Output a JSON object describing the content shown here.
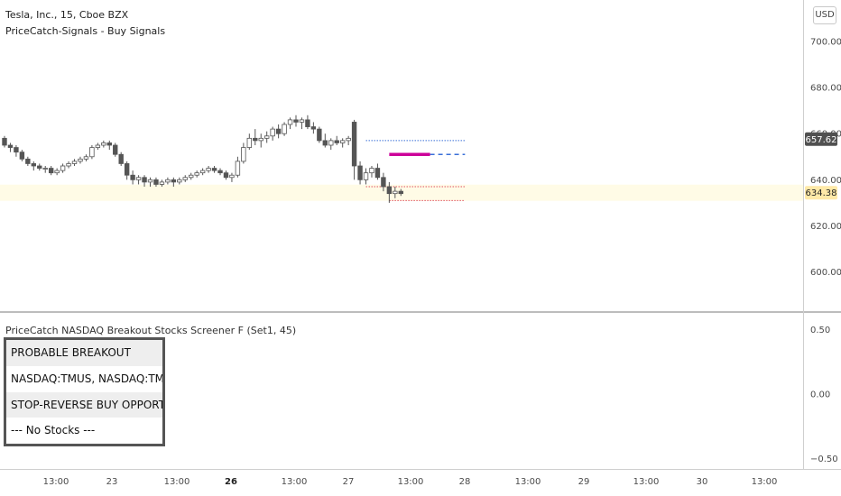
{
  "header": {
    "symbol_title": "Tesla, Inc., 15, Cboe BZX",
    "indicator_title": "PriceCatch-Signals - Buy Signals",
    "currency": "USD"
  },
  "pane2": {
    "title": "PriceCatch NASDAQ Breakout Stocks Screener F (Set1, 45)",
    "y_ticks": [
      "0.50",
      "0.00",
      "−0.50"
    ]
  },
  "screener": {
    "rows": [
      {
        "text": "PROBABLE BREAKOUT",
        "header": true
      },
      {
        "text": "NASDAQ:TMUS, NASDAQ:TMUS,",
        "header": false
      },
      {
        "text": "STOP-REVERSE BUY OPPORTUNITY",
        "header": true
      },
      {
        "text": "--- No Stocks ---",
        "header": false
      }
    ]
  },
  "colors": {
    "up_body": "#ffffff",
    "down_body": "#555555",
    "wick": "#555555",
    "last_price_bg": "#ffe9a8",
    "prev_price_bg": "#505050",
    "signal_magenta": "#cc0099",
    "level_blue": "#3a6fd8",
    "level_red": "#e05060"
  },
  "chart_data": [
    {
      "type": "candlestick",
      "title": "Tesla, Inc., 15, Cboe BZX",
      "subtitle": "PriceCatch-Signals - Buy Signals",
      "x_ticks": [
        "13:00",
        "23",
        "13:00",
        "26",
        "13:00",
        "27",
        "13:00",
        "28",
        "13:00",
        "29",
        "13:00",
        "30",
        "13:00"
      ],
      "y_ticks": [
        700,
        680,
        660,
        640,
        620,
        600
      ],
      "ylim": [
        583,
        718
      ],
      "price_labels": {
        "last": 634.38,
        "previous_close": 657.62
      },
      "candles": [
        [
          658,
          659,
          654,
          655
        ],
        [
          655,
          656,
          652,
          654
        ],
        [
          654,
          655,
          650,
          652
        ],
        [
          652,
          653,
          648,
          649
        ],
        [
          649,
          650,
          646,
          647
        ],
        [
          647,
          648,
          644,
          646
        ],
        [
          646,
          647,
          644,
          645
        ],
        [
          645,
          646,
          643,
          645
        ],
        [
          645,
          646,
          642,
          643
        ],
        [
          643,
          645,
          642,
          644
        ],
        [
          644,
          647,
          643,
          646
        ],
        [
          646,
          648,
          645,
          647
        ],
        [
          647,
          649,
          646,
          648
        ],
        [
          648,
          650,
          647,
          649
        ],
        [
          649,
          651,
          648,
          650
        ],
        [
          650,
          655,
          649,
          654
        ],
        [
          654,
          656,
          653,
          655
        ],
        [
          655,
          657,
          654,
          656
        ],
        [
          656,
          657,
          653,
          655
        ],
        [
          655,
          656,
          650,
          651
        ],
        [
          651,
          652,
          646,
          647
        ],
        [
          647,
          648,
          640,
          642
        ],
        [
          642,
          644,
          638,
          640
        ],
        [
          640,
          642,
          638,
          641
        ],
        [
          641,
          642,
          637,
          639
        ],
        [
          639,
          641,
          637,
          640
        ],
        [
          640,
          641,
          637,
          638
        ],
        [
          638,
          640,
          637,
          639
        ],
        [
          639,
          641,
          638,
          640
        ],
        [
          640,
          641,
          637,
          639
        ],
        [
          639,
          641,
          638,
          640
        ],
        [
          640,
          642,
          639,
          641
        ],
        [
          641,
          643,
          640,
          642
        ],
        [
          642,
          644,
          641,
          643
        ],
        [
          643,
          645,
          642,
          644
        ],
        [
          644,
          646,
          643,
          645
        ],
        [
          645,
          646,
          643,
          644
        ],
        [
          644,
          645,
          642,
          643
        ],
        [
          643,
          644,
          640,
          641
        ],
        [
          641,
          643,
          639,
          642
        ],
        [
          642,
          650,
          641,
          648
        ],
        [
          648,
          656,
          647,
          654
        ],
        [
          654,
          660,
          653,
          658
        ],
        [
          658,
          662,
          655,
          657
        ],
        [
          657,
          660,
          654,
          658
        ],
        [
          658,
          661,
          656,
          659
        ],
        [
          659,
          663,
          657,
          662
        ],
        [
          662,
          664,
          658,
          660
        ],
        [
          660,
          665,
          659,
          664
        ],
        [
          664,
          667,
          662,
          666
        ],
        [
          666,
          668,
          663,
          665
        ],
        [
          665,
          667,
          662,
          666
        ],
        [
          666,
          668,
          662,
          663
        ],
        [
          663,
          665,
          660,
          662
        ],
        [
          662,
          663,
          656,
          657
        ],
        [
          657,
          660,
          654,
          655
        ],
        [
          655,
          658,
          653,
          657
        ],
        [
          657,
          659,
          655,
          656
        ],
        [
          656,
          658,
          654,
          657
        ],
        [
          657,
          659,
          655,
          658
        ],
        [
          665,
          666,
          640,
          646
        ],
        [
          646,
          648,
          638,
          640
        ],
        [
          640,
          645,
          638,
          643
        ],
        [
          643,
          646,
          641,
          645
        ],
        [
          645,
          647,
          640,
          641
        ],
        [
          641,
          643,
          635,
          637
        ],
        [
          637,
          639,
          630,
          634
        ],
        [
          634,
          637,
          632,
          635
        ],
        [
          635,
          636,
          633,
          634
        ]
      ],
      "lines": [
        {
          "name": "",
          "style": "dotted",
          "color": "#3a6fd8",
          "y": 657,
          "x_from": 62,
          "x_to": 79
        },
        {
          "name": "",
          "style": "solid-thick",
          "color": "#cc0099",
          "y": 651,
          "x_from": 66,
          "x_to": 73
        },
        {
          "name": "",
          "style": "dashed",
          "color": "#3a6fd8",
          "y": 651,
          "x_from": 73,
          "x_to": 79
        },
        {
          "name": "",
          "style": "dotted",
          "color": "#e05060",
          "y": 637,
          "x_from": 62,
          "x_to": 79
        },
        {
          "name": "",
          "style": "dotted",
          "color": "#e05060",
          "y": 631,
          "x_from": 66,
          "x_to": 79
        }
      ]
    },
    {
      "type": "table",
      "title": "PriceCatch NASDAQ Breakout Stocks Screener F (Set1, 45)",
      "y_ticks": [
        0.5,
        0.0,
        -0.5
      ],
      "ylim": [
        -0.58,
        0.63
      ]
    }
  ]
}
